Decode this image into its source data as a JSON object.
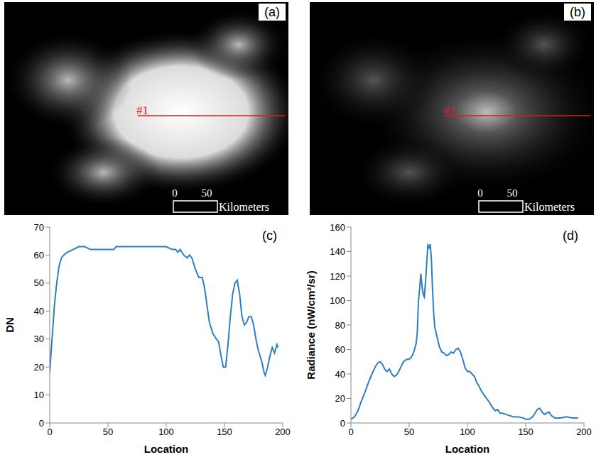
{
  "chart_data": [
    {
      "type": "image",
      "title": "(a)",
      "annotations": [
        "#1"
      ],
      "color": "#e8141b",
      "scale_bar": {
        "values": [
          0,
          50
        ],
        "label": "Kilometers"
      }
    },
    {
      "type": "image",
      "title": "(b)",
      "annotations": [
        "#1"
      ],
      "color": "#e8141b",
      "scale_bar": {
        "values": [
          0,
          50
        ],
        "label": "Kilometers"
      }
    },
    {
      "type": "line",
      "title": "(c)",
      "x_label": "Location",
      "y_label": "DN",
      "color": "#2e7ec4",
      "xlim": [
        0,
        200
      ],
      "xticks": [
        0,
        50,
        100,
        150,
        200
      ],
      "ylim": [
        0,
        70
      ],
      "yticks": [
        0,
        10,
        20,
        30,
        40,
        50,
        60,
        70
      ],
      "grid": false,
      "x": [
        0,
        2,
        4,
        6,
        8,
        10,
        12,
        15,
        20,
        25,
        30,
        35,
        40,
        50,
        55,
        57,
        60,
        70,
        80,
        90,
        100,
        105,
        108,
        110,
        112,
        115,
        118,
        120,
        122,
        125,
        128,
        131,
        133,
        135,
        137,
        140,
        143,
        145,
        147,
        149,
        151,
        153,
        155,
        157,
        159,
        161,
        163,
        165,
        167,
        169,
        171,
        173,
        175,
        177,
        179,
        182,
        184,
        185,
        187,
        189,
        191,
        193,
        195,
        196
      ],
      "values": [
        18,
        30,
        42,
        50,
        56,
        59,
        60,
        61,
        62,
        63,
        63,
        62,
        62,
        62,
        62,
        63,
        63,
        63,
        63,
        63,
        63,
        62,
        62,
        61,
        62,
        60,
        59,
        60,
        59,
        55,
        52,
        52,
        48,
        42,
        36,
        32,
        30,
        29,
        24,
        20,
        20,
        28,
        38,
        46,
        50,
        51,
        46,
        38,
        35,
        36,
        38,
        38,
        35,
        30,
        26,
        22,
        18,
        17,
        20,
        24,
        27,
        25,
        28,
        27
      ]
    },
    {
      "type": "line",
      "title": "(d)",
      "x_label": "Location",
      "y_label": "Radiance (nW/cm²/sr)",
      "color": "#2e7ec4",
      "xlim": [
        0,
        200
      ],
      "xticks": [
        0,
        50,
        100,
        150,
        200
      ],
      "ylim": [
        0,
        160
      ],
      "yticks": [
        0,
        20,
        40,
        60,
        80,
        100,
        120,
        140,
        160
      ],
      "grid": false,
      "x": [
        0,
        3,
        6,
        9,
        12,
        15,
        18,
        21,
        23,
        25,
        27,
        29,
        31,
        33,
        35,
        37,
        39,
        41,
        43,
        45,
        48,
        50,
        52,
        54,
        56,
        57,
        58,
        59,
        60,
        61,
        62,
        63,
        64,
        65,
        66,
        67,
        68,
        69,
        70,
        71,
        72,
        74,
        76,
        78,
        80,
        82,
        84,
        86,
        88,
        90,
        92,
        94,
        96,
        98,
        100,
        102,
        104,
        106,
        108,
        110,
        112,
        115,
        118,
        120,
        122,
        124,
        126,
        128,
        130,
        133,
        136,
        140,
        144,
        148,
        150,
        153,
        156,
        158,
        160,
        162,
        164,
        166,
        168,
        170,
        172,
        175,
        180,
        185,
        190,
        195
      ],
      "values": [
        3,
        5,
        10,
        18,
        25,
        33,
        40,
        46,
        49,
        50,
        48,
        44,
        42,
        44,
        40,
        38,
        39,
        42,
        46,
        50,
        52,
        52,
        54,
        58,
        65,
        75,
        100,
        110,
        122,
        112,
        105,
        103,
        115,
        130,
        145,
        143,
        146,
        135,
        110,
        90,
        78,
        70,
        62,
        58,
        57,
        55,
        56,
        58,
        57,
        60,
        61,
        58,
        52,
        45,
        42,
        42,
        40,
        38,
        33,
        30,
        26,
        22,
        18,
        15,
        12,
        10,
        11,
        8,
        8,
        7,
        6,
        5,
        5,
        4,
        3,
        3,
        5,
        8,
        11,
        12,
        9,
        7,
        8,
        9,
        6,
        4,
        4,
        5,
        4,
        4
      ]
    }
  ]
}
